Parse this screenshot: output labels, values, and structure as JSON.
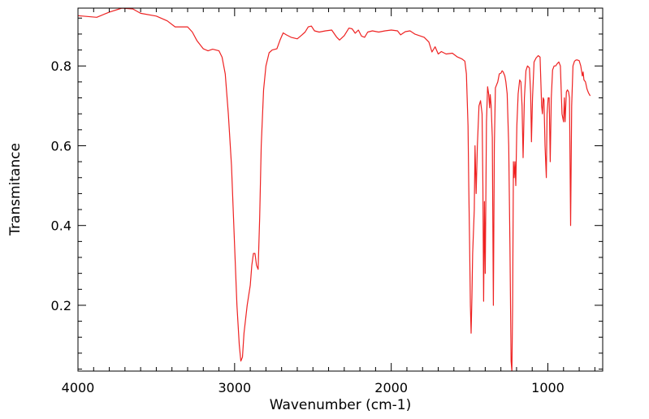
{
  "chart_data": {
    "type": "line",
    "title": "",
    "xlabel": "Wavenumber (cm-1)",
    "ylabel": "Transmitance",
    "xlim": [
      4000,
      650
    ],
    "ylim": [
      0.035,
      0.945
    ],
    "x_reversed": true,
    "grid": false,
    "x_ticks": [
      {
        "value": 4000,
        "label": "4000"
      },
      {
        "value": 3000,
        "label": "3000"
      },
      {
        "value": 2000,
        "label": "2000"
      },
      {
        "value": 1000,
        "label": "1000"
      }
    ],
    "y_ticks": [
      {
        "value": 0.2,
        "label": "0.2"
      },
      {
        "value": 0.4,
        "label": "0.4"
      },
      {
        "value": 0.6,
        "label": "0.6"
      },
      {
        "value": 0.8,
        "label": "0.8"
      }
    ],
    "series": [
      {
        "color": "#ee2222",
        "points": [
          [
            4000,
            0.926
          ],
          [
            3880,
            0.922
          ],
          [
            3800,
            0.935
          ],
          [
            3720,
            0.945
          ],
          [
            3650,
            0.943
          ],
          [
            3600,
            0.932
          ],
          [
            3500,
            0.925
          ],
          [
            3430,
            0.913
          ],
          [
            3380,
            0.898
          ],
          [
            3300,
            0.898
          ],
          [
            3270,
            0.885
          ],
          [
            3240,
            0.863
          ],
          [
            3200,
            0.843
          ],
          [
            3170,
            0.838
          ],
          [
            3140,
            0.842
          ],
          [
            3100,
            0.838
          ],
          [
            3080,
            0.822
          ],
          [
            3060,
            0.78
          ],
          [
            3040,
            0.68
          ],
          [
            3020,
            0.55
          ],
          [
            3000,
            0.35
          ],
          [
            2985,
            0.2
          ],
          [
            2970,
            0.1
          ],
          [
            2960,
            0.06
          ],
          [
            2950,
            0.07
          ],
          [
            2940,
            0.13
          ],
          [
            2920,
            0.2
          ],
          [
            2900,
            0.25
          ],
          [
            2890,
            0.3
          ],
          [
            2880,
            0.33
          ],
          [
            2870,
            0.33
          ],
          [
            2860,
            0.3
          ],
          [
            2850,
            0.29
          ],
          [
            2840,
            0.42
          ],
          [
            2830,
            0.6
          ],
          [
            2815,
            0.74
          ],
          [
            2800,
            0.8
          ],
          [
            2780,
            0.833
          ],
          [
            2760,
            0.84
          ],
          [
            2730,
            0.843
          ],
          [
            2710,
            0.865
          ],
          [
            2690,
            0.883
          ],
          [
            2670,
            0.878
          ],
          [
            2640,
            0.872
          ],
          [
            2600,
            0.868
          ],
          [
            2570,
            0.878
          ],
          [
            2550,
            0.885
          ],
          [
            2530,
            0.898
          ],
          [
            2510,
            0.9
          ],
          [
            2490,
            0.888
          ],
          [
            2460,
            0.885
          ],
          [
            2420,
            0.888
          ],
          [
            2380,
            0.89
          ],
          [
            2350,
            0.873
          ],
          [
            2330,
            0.865
          ],
          [
            2300,
            0.876
          ],
          [
            2270,
            0.895
          ],
          [
            2250,
            0.893
          ],
          [
            2230,
            0.882
          ],
          [
            2210,
            0.89
          ],
          [
            2190,
            0.875
          ],
          [
            2170,
            0.872
          ],
          [
            2150,
            0.885
          ],
          [
            2120,
            0.888
          ],
          [
            2080,
            0.885
          ],
          [
            2040,
            0.888
          ],
          [
            2000,
            0.89
          ],
          [
            1960,
            0.888
          ],
          [
            1940,
            0.878
          ],
          [
            1910,
            0.886
          ],
          [
            1880,
            0.888
          ],
          [
            1850,
            0.88
          ],
          [
            1820,
            0.876
          ],
          [
            1790,
            0.872
          ],
          [
            1760,
            0.86
          ],
          [
            1740,
            0.835
          ],
          [
            1720,
            0.848
          ],
          [
            1700,
            0.83
          ],
          [
            1680,
            0.836
          ],
          [
            1650,
            0.83
          ],
          [
            1610,
            0.832
          ],
          [
            1580,
            0.823
          ],
          [
            1550,
            0.818
          ],
          [
            1530,
            0.812
          ],
          [
            1520,
            0.78
          ],
          [
            1510,
            0.65
          ],
          [
            1505,
            0.5
          ],
          [
            1500,
            0.36
          ],
          [
            1495,
            0.2
          ],
          [
            1490,
            0.13
          ],
          [
            1485,
            0.22
          ],
          [
            1480,
            0.33
          ],
          [
            1470,
            0.44
          ],
          [
            1465,
            0.6
          ],
          [
            1458,
            0.48
          ],
          [
            1450,
            0.6
          ],
          [
            1440,
            0.7
          ],
          [
            1430,
            0.713
          ],
          [
            1420,
            0.68
          ],
          [
            1415,
            0.5
          ],
          [
            1410,
            0.21
          ],
          [
            1405,
            0.46
          ],
          [
            1400,
            0.28
          ],
          [
            1392,
            0.66
          ],
          [
            1385,
            0.748
          ],
          [
            1378,
            0.73
          ],
          [
            1372,
            0.695
          ],
          [
            1368,
            0.728
          ],
          [
            1362,
            0.7
          ],
          [
            1355,
            0.62
          ],
          [
            1348,
            0.2
          ],
          [
            1342,
            0.6
          ],
          [
            1335,
            0.745
          ],
          [
            1320,
            0.76
          ],
          [
            1310,
            0.78
          ],
          [
            1300,
            0.782
          ],
          [
            1292,
            0.788
          ],
          [
            1285,
            0.785
          ],
          [
            1275,
            0.775
          ],
          [
            1268,
            0.76
          ],
          [
            1260,
            0.73
          ],
          [
            1250,
            0.6
          ],
          [
            1242,
            0.35
          ],
          [
            1235,
            0.06
          ],
          [
            1230,
            0.035
          ],
          [
            1225,
            0.2
          ],
          [
            1220,
            0.56
          ],
          [
            1215,
            0.52
          ],
          [
            1210,
            0.56
          ],
          [
            1205,
            0.5
          ],
          [
            1198,
            0.65
          ],
          [
            1190,
            0.73
          ],
          [
            1180,
            0.765
          ],
          [
            1172,
            0.76
          ],
          [
            1165,
            0.7
          ],
          [
            1158,
            0.57
          ],
          [
            1150,
            0.72
          ],
          [
            1140,
            0.788
          ],
          [
            1130,
            0.8
          ],
          [
            1118,
            0.795
          ],
          [
            1110,
            0.73
          ],
          [
            1105,
            0.61
          ],
          [
            1098,
            0.72
          ],
          [
            1088,
            0.81
          ],
          [
            1075,
            0.82
          ],
          [
            1062,
            0.826
          ],
          [
            1050,
            0.822
          ],
          [
            1040,
            0.7
          ],
          [
            1035,
            0.68
          ],
          [
            1030,
            0.72
          ],
          [
            1025,
            0.715
          ],
          [
            1018,
            0.6
          ],
          [
            1010,
            0.52
          ],
          [
            1005,
            0.68
          ],
          [
            998,
            0.72
          ],
          [
            992,
            0.72
          ],
          [
            985,
            0.56
          ],
          [
            978,
            0.72
          ],
          [
            970,
            0.79
          ],
          [
            960,
            0.8
          ],
          [
            950,
            0.8
          ],
          [
            940,
            0.806
          ],
          [
            930,
            0.81
          ],
          [
            920,
            0.8
          ],
          [
            910,
            0.68
          ],
          [
            900,
            0.66
          ],
          [
            895,
            0.72
          ],
          [
            890,
            0.66
          ],
          [
            882,
            0.735
          ],
          [
            875,
            0.74
          ],
          [
            868,
            0.735
          ],
          [
            862,
            0.72
          ],
          [
            855,
            0.4
          ],
          [
            848,
            0.7
          ],
          [
            840,
            0.8
          ],
          [
            830,
            0.812
          ],
          [
            820,
            0.815
          ],
          [
            810,
            0.815
          ],
          [
            800,
            0.813
          ],
          [
            790,
            0.8
          ],
          [
            780,
            0.775
          ],
          [
            775,
            0.785
          ],
          [
            770,
            0.765
          ],
          [
            760,
            0.76
          ],
          [
            750,
            0.742
          ],
          [
            740,
            0.732
          ],
          [
            730,
            0.725
          ]
        ]
      }
    ]
  }
}
